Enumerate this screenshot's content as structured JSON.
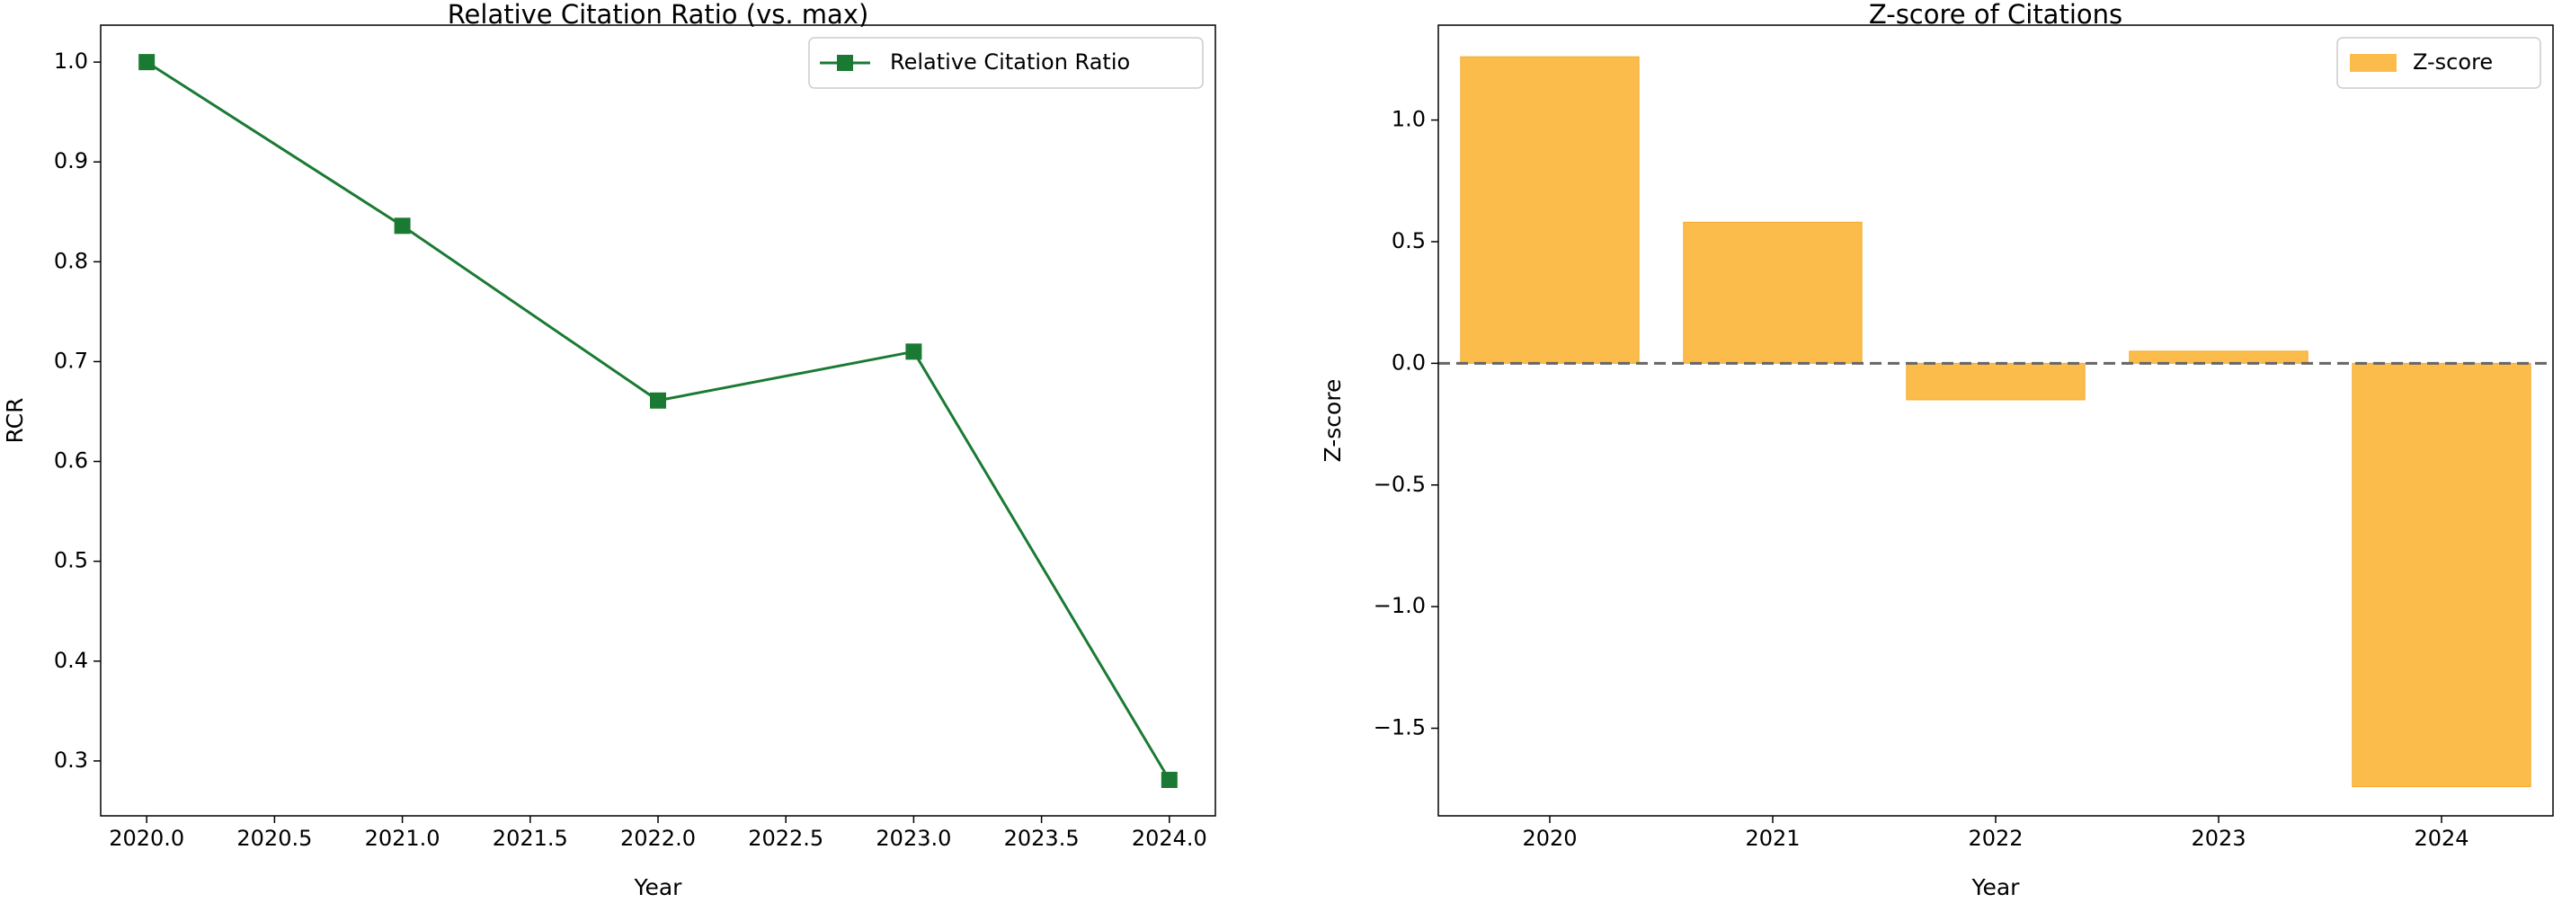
{
  "chart_data": [
    {
      "type": "line",
      "title": "Relative Citation Ratio (vs. max)",
      "xlabel": "Year",
      "ylabel": "RCR",
      "xlim": [
        2019.82,
        2024.18
      ],
      "ylim": [
        0.245,
        1.037
      ],
      "xticks": [
        2020.0,
        2020.5,
        2021.0,
        2021.5,
        2022.0,
        2022.5,
        2023.0,
        2023.5,
        2024.0
      ],
      "xtick_labels": [
        "2020.0",
        "2020.5",
        "2021.0",
        "2021.5",
        "2022.0",
        "2022.5",
        "2023.0",
        "2023.5",
        "2024.0"
      ],
      "yticks": [
        0.3,
        0.4,
        0.5,
        0.6,
        0.7,
        0.8,
        0.9,
        1.0
      ],
      "ytick_labels": [
        "0.3",
        "0.4",
        "0.5",
        "0.6",
        "0.7",
        "0.8",
        "0.9",
        "1.0"
      ],
      "legend_position": "top-right",
      "grid": false,
      "series": [
        {
          "name": "Relative Citation Ratio",
          "color": "#1a7a33",
          "marker": "square",
          "x": [
            2020,
            2021,
            2022,
            2023,
            2024
          ],
          "values": [
            1.0,
            0.836,
            0.661,
            0.71,
            0.281
          ]
        }
      ]
    },
    {
      "type": "bar",
      "title": "Z-score of Citations",
      "xlabel": "Year",
      "ylabel": "Z-score",
      "ylim": [
        -1.86,
        1.39
      ],
      "categories": [
        "2020",
        "2021",
        "2022",
        "2023",
        "2024"
      ],
      "yticks": [
        -1.5,
        -1.0,
        -0.5,
        0.0,
        0.5,
        1.0
      ],
      "ytick_labels": [
        "−1.5",
        "−1.0",
        "−0.5",
        "0.0",
        "0.5",
        "1.0"
      ],
      "legend_position": "top-right",
      "grid": false,
      "reference_line": {
        "y": 0.0,
        "style": "dashed",
        "color": "#666666"
      },
      "series": [
        {
          "name": "Z-score",
          "color": "#fbbc4c",
          "values": [
            1.26,
            0.58,
            -0.15,
            0.05,
            -1.74
          ]
        }
      ]
    }
  ]
}
